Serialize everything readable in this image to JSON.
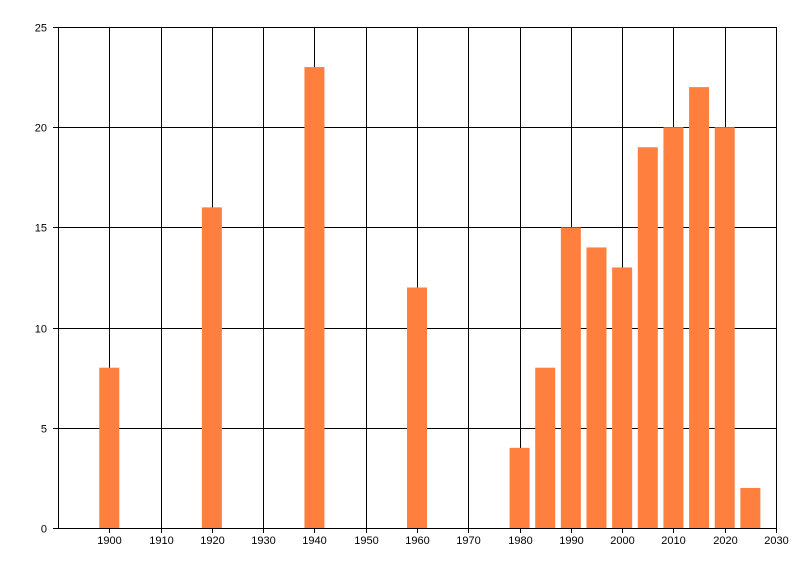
{
  "chart_data": {
    "type": "bar",
    "title": "",
    "xlabel": "",
    "ylabel": "",
    "x": [
      1900,
      1920,
      1940,
      1960,
      1980,
      1985,
      1990,
      1995,
      2000,
      2005,
      2010,
      2015,
      2020,
      2025
    ],
    "values": [
      8,
      16,
      23,
      12,
      4,
      8,
      15,
      14,
      13,
      19,
      20,
      22,
      20,
      2
    ],
    "xlim": [
      1890,
      2030
    ],
    "ylim": [
      0,
      25
    ],
    "xticks": [
      1900,
      1910,
      1920,
      1930,
      1940,
      1950,
      1960,
      1970,
      1980,
      1990,
      2000,
      2010,
      2020,
      2030
    ],
    "xtick_labels": [
      "1900",
      "1910",
      "1920",
      "1930",
      "1940",
      "1950",
      "1960",
      "1970",
      "1980",
      "1990",
      "2000",
      "2010",
      "2020",
      "2030"
    ],
    "yticks": [
      0,
      5,
      10,
      15,
      20,
      25
    ],
    "ytick_labels": [
      "0",
      "5",
      "10",
      "15",
      "20",
      "25"
    ],
    "grid": true,
    "legend": "none",
    "bar_color": "#ff7f3f",
    "grid_color": "#000000"
  }
}
